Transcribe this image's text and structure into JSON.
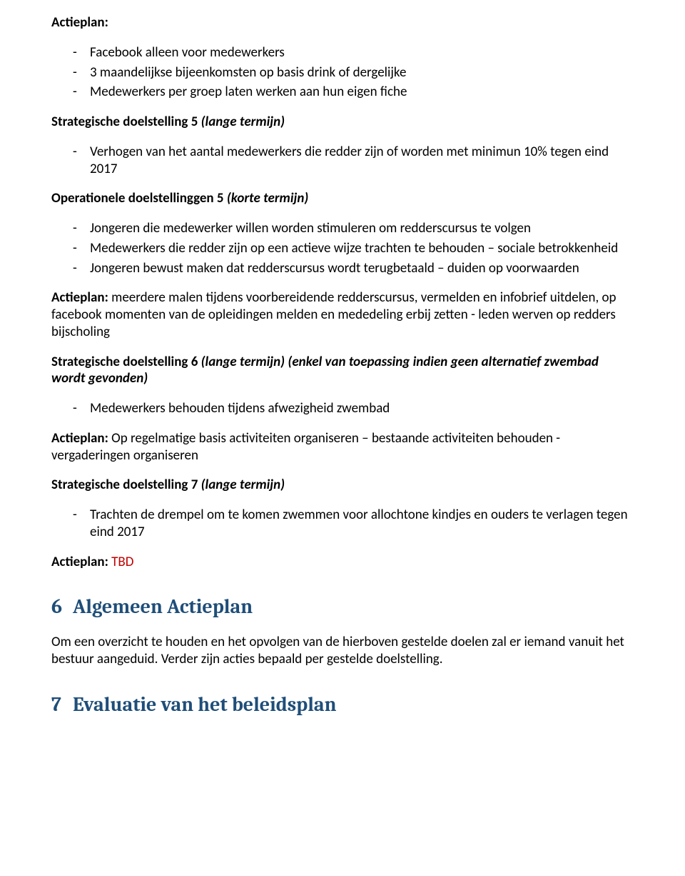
{
  "colors": {
    "text": "#000000",
    "heading_blue": "#1f4e79",
    "red": "#c00000",
    "background": "#ffffff"
  },
  "typography": {
    "body_font": "Calibri",
    "body_size_pt": 11,
    "heading_font": "Cambria",
    "heading_size_pt": 16
  },
  "sections": {
    "actieplan1": {
      "title": "Actieplan:",
      "items": [
        "Facebook alleen voor medewerkers",
        "3 maandelijkse bijeenkomsten op basis drink of dergelijke",
        "Medewerkers per groep laten werken aan hun eigen fiche"
      ]
    },
    "sd5": {
      "title_bold": "Strategische doelstelling 5 ",
      "title_italic": "(lange termijn)",
      "items": [
        "Verhogen van het aantal medewerkers die redder zijn of worden met minimun 10% tegen eind 2017"
      ]
    },
    "od5": {
      "title_bold": "Operationele doelstellinggen 5 ",
      "title_italic": "(korte termijn)",
      "items": [
        "Jongeren die medewerker willen worden stimuleren om redderscursus te volgen",
        "Medewerkers die redder zijn op een actieve wijze trachten te behouden – sociale betrokkenheid",
        "Jongeren bewust maken dat redderscursus wordt terugbetaald – duiden op voorwaarden"
      ]
    },
    "actieplan_od5": {
      "label": "Actieplan:",
      "text": " meerdere malen tijdens voorbereidende redderscursus, vermelden en infobrief uitdelen, op facebook momenten van de opleidingen melden en mededeling erbij zetten -  leden werven op redders bijscholing"
    },
    "sd6": {
      "title_bold": "Strategische doelstelling 6 ",
      "title_italic": "(lange termijn) (enkel van toepassing indien geen alternatief zwembad wordt gevonden)",
      "items": [
        "Medewerkers behouden tijdens afwezigheid zwembad"
      ]
    },
    "actieplan_sd6": {
      "label": "Actieplan:",
      "text": " Op regelmatige basis activiteiten organiseren – bestaande activiteiten behouden - vergaderingen organiseren"
    },
    "sd7": {
      "title_bold": "Strategische doelstelling 7 ",
      "title_italic": "(lange termijn)",
      "items": [
        "Trachten de drempel om te komen zwemmen voor allochtone kindjes en ouders te verlagen tegen eind 2017"
      ]
    },
    "actieplan_sd7": {
      "label": "Actieplan:  ",
      "tbd": "TBD"
    },
    "h6": {
      "number": "6",
      "title": "Algemeen Actieplan"
    },
    "h6_body": "Om een overzicht te houden en het opvolgen van de hierboven gestelde doelen zal er iemand vanuit het bestuur aangeduid.  Verder zijn acties bepaald per gestelde doelstelling.",
    "h7": {
      "number": "7",
      "title": "Evaluatie van het beleidsplan"
    }
  }
}
